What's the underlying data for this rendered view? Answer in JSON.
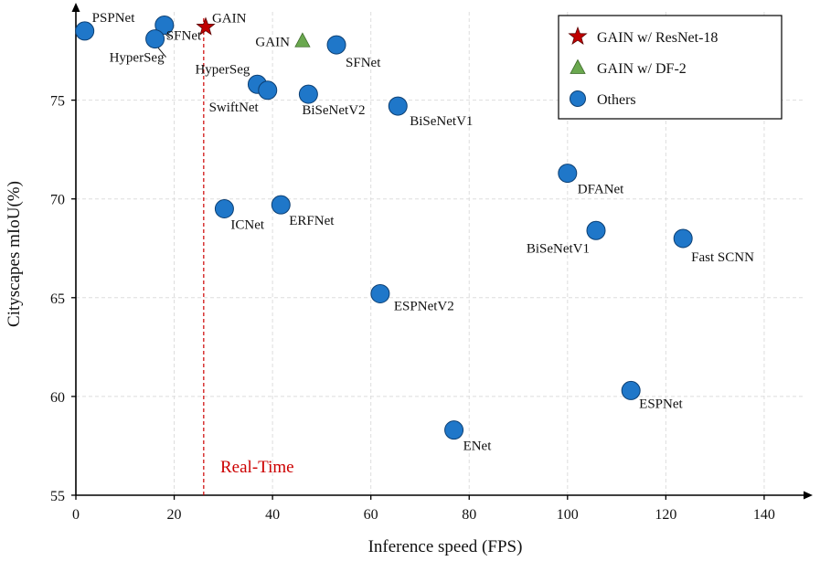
{
  "chart_data": {
    "type": "scatter",
    "xlabel": "Inference speed (FPS)",
    "ylabel": "Cityscapes mIoU(%)",
    "xlim": [
      0,
      150
    ],
    "ylim": [
      55,
      80
    ],
    "xticks": [
      0,
      20,
      40,
      60,
      80,
      100,
      120,
      140
    ],
    "yticks": [
      55,
      60,
      65,
      70,
      75
    ],
    "grid": true,
    "realtime_threshold": 26,
    "realtime_label": "Real-Time",
    "realtime_color": "#cc0000",
    "legend": {
      "placement": "top-right",
      "entries": [
        {
          "marker": "star",
          "label": "GAIN w/ ResNet-18",
          "color": "#c00000"
        },
        {
          "marker": "triangle",
          "label": "GAIN w/ DF-2",
          "color": "#6aa84f"
        },
        {
          "marker": "circle",
          "label": "Others",
          "color": "#1f77c9"
        }
      ]
    },
    "series": [
      {
        "name": "GAIN w/ ResNet-18",
        "marker": "star",
        "color": "#c00000",
        "points": [
          {
            "x": 26.4,
            "y": 78.7,
            "label": "GAIN"
          }
        ]
      },
      {
        "name": "GAIN w/ DF-2",
        "marker": "triangle",
        "color": "#6aa84f",
        "points": [
          {
            "x": 46.1,
            "y": 78.0,
            "label": "GAIN"
          }
        ]
      },
      {
        "name": "Others",
        "marker": "circle",
        "color": "#1f77c9",
        "points": [
          {
            "x": 1.8,
            "y": 78.5,
            "label": "PSPNet"
          },
          {
            "x": 18.0,
            "y": 78.8,
            "label": "SFNet"
          },
          {
            "x": 16.1,
            "y": 78.1,
            "label": "HyperSeg"
          },
          {
            "x": 53.0,
            "y": 77.8,
            "label": "SFNet"
          },
          {
            "x": 36.9,
            "y": 75.8,
            "label": "HyperSeg"
          },
          {
            "x": 39.0,
            "y": 75.5,
            "label": "SwiftNet"
          },
          {
            "x": 47.3,
            "y": 75.3,
            "label": "BiSeNetV2"
          },
          {
            "x": 65.5,
            "y": 74.7,
            "label": "BiSeNetV1"
          },
          {
            "x": 100.0,
            "y": 71.3,
            "label": "DFANet"
          },
          {
            "x": 41.7,
            "y": 69.7,
            "label": "ERFNet"
          },
          {
            "x": 30.2,
            "y": 69.5,
            "label": "ICNet"
          },
          {
            "x": 105.8,
            "y": 68.4,
            "label": "BiSeNetV1"
          },
          {
            "x": 123.5,
            "y": 68.0,
            "label": "Fast SCNN"
          },
          {
            "x": 61.9,
            "y": 65.2,
            "label": "ESPNetV2"
          },
          {
            "x": 112.9,
            "y": 60.3,
            "label": "ESPNet"
          },
          {
            "x": 76.9,
            "y": 58.3,
            "label": "ENet"
          }
        ]
      }
    ]
  }
}
